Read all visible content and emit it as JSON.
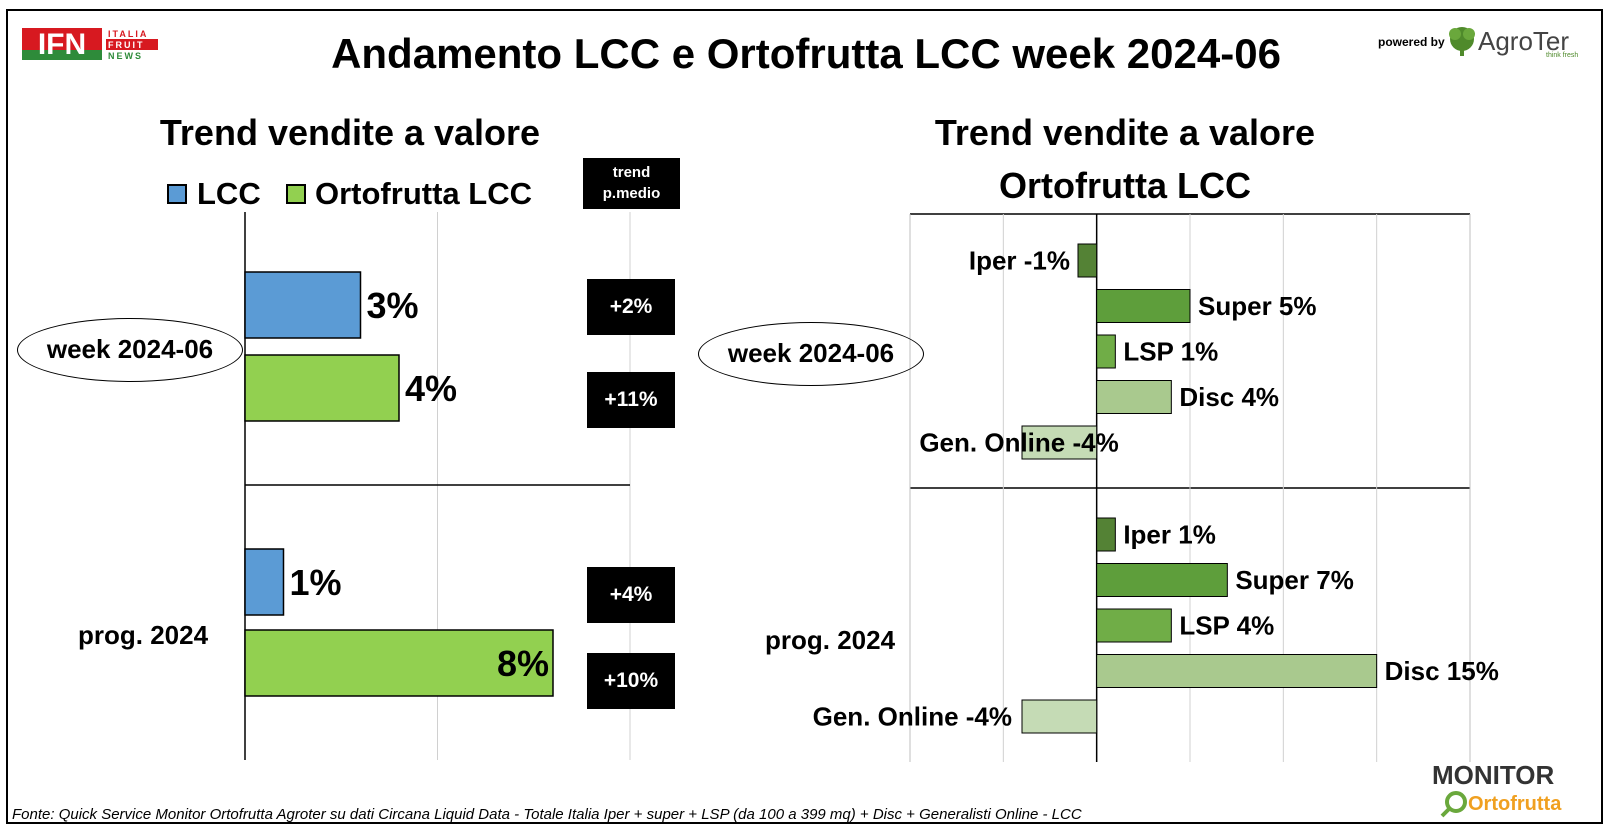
{
  "header": {
    "title": "Andamento LCC e Ortofrutta LCC week 2024-06",
    "ifn_logo_text": "IFN",
    "ifn_logo_side": [
      "ITALIA",
      "FRUIT",
      "NEWS"
    ],
    "powered_by": "powered by",
    "agroter_name": "AgroTer",
    "agroter_tagline": "think fresh"
  },
  "left_panel": {
    "subtitle": "Trend vendite a valore",
    "trend_header": [
      "trend",
      "p.medio"
    ],
    "period_labels": [
      "week 2024-06",
      "prog. 2024"
    ]
  },
  "right_panel": {
    "subtitle_line1": "Trend vendite a valore",
    "subtitle_line2": "Ortofrutta LCC",
    "period_labels": [
      "week 2024-06",
      "prog. 2024"
    ]
  },
  "footer": {
    "source": "Fonte: Quick Service Monitor Ortofrutta Agroter su dati Circana Liquid Data - Totale Italia Iper + super + LSP (da 100 a 399 mq) + Disc + Generalisti Online - LCC",
    "monitor_logo": [
      "MONITOR",
      "Ortofrutta"
    ]
  },
  "chart_data": [
    {
      "type": "bar",
      "orientation": "horizontal",
      "title": "Trend vendite a valore",
      "categories": [
        "week 2024-06",
        "prog. 2024"
      ],
      "series": [
        {
          "name": "LCC",
          "values": [
            3,
            1
          ],
          "labels": [
            "3%",
            "1%"
          ],
          "color": "#5B9BD5"
        },
        {
          "name": "Ortofrutta LCC",
          "values": [
            4,
            8
          ],
          "labels": [
            "4%",
            "8%"
          ],
          "color": "#92D050"
        }
      ],
      "trend_p_medio": [
        [
          "+2%",
          "+11%"
        ],
        [
          "+4%",
          "+10%"
        ]
      ],
      "xlim": [
        0,
        10
      ],
      "grid": true,
      "legend": "top"
    },
    {
      "type": "bar",
      "orientation": "horizontal",
      "title": "Trend vendite a valore Ortofrutta LCC",
      "categories": [
        "week 2024-06",
        "prog. 2024"
      ],
      "channels": [
        "Iper",
        "Super",
        "LSP",
        "Disc",
        "Gen. Online"
      ],
      "channel_colors": [
        "#548235",
        "#5E9E3B",
        "#70AD47",
        "#A9C98E",
        "#C5DBB5"
      ],
      "groups": [
        {
          "period": "week 2024-06",
          "values": [
            -1,
            5,
            1,
            4,
            -4
          ],
          "labels": [
            "Iper -1%",
            "Super 5%",
            "LSP 1%",
            "Disc 4%",
            "Gen. Online -4%"
          ]
        },
        {
          "period": "prog. 2024",
          "values": [
            1,
            7,
            4,
            15,
            -4
          ],
          "labels": [
            "Iper 1%",
            "Super 7%",
            "LSP 4%",
            "Disc 15%",
            "Gen. Online -4%"
          ]
        }
      ],
      "xlim": [
        -10,
        20
      ],
      "grid": true
    }
  ]
}
